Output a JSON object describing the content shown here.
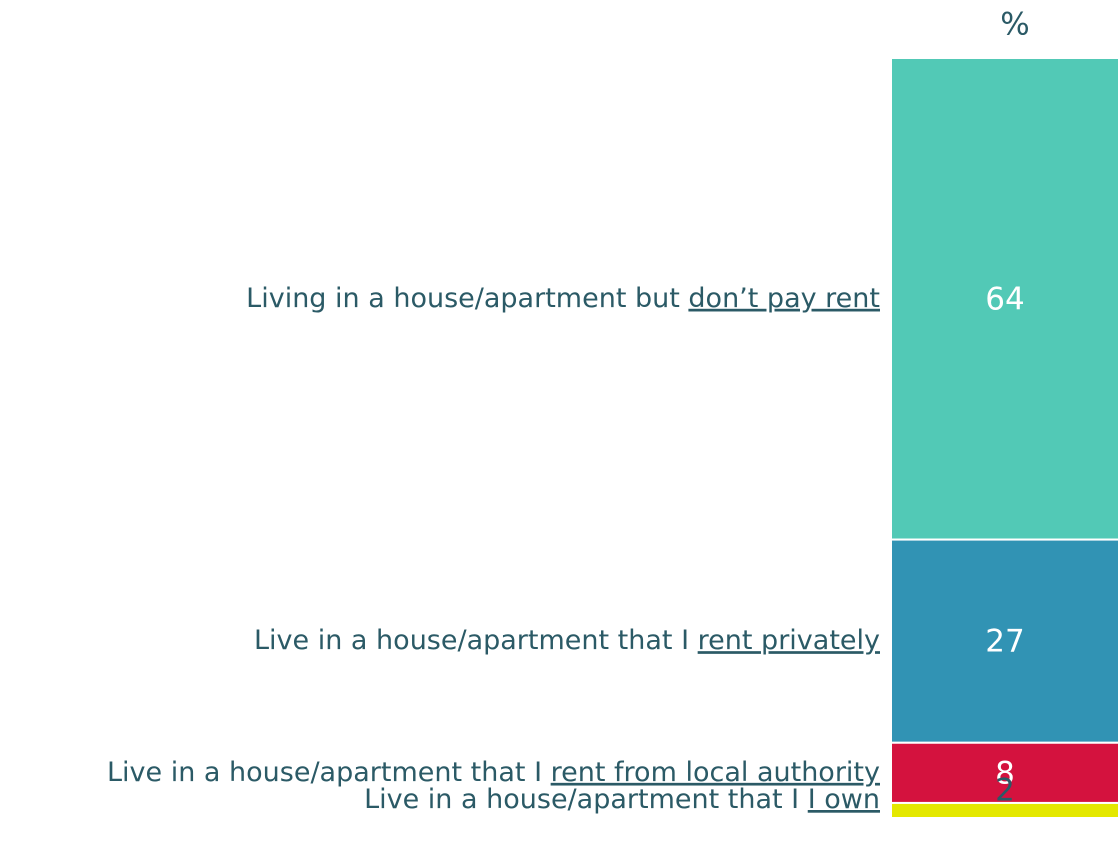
{
  "chart_data": {
    "type": "stacked_bar",
    "unit_label": "%",
    "series": [
      {
        "name": [
          "Living in a house/apartment but ",
          "don’t pay rent"
        ],
        "color": "#52c9b6",
        "values": [
          64
        ]
      },
      {
        "name": [
          "Live in a house/apartment that I ",
          "rent privately"
        ],
        "color": "#3193b4",
        "values": [
          27
        ]
      },
      {
        "name": [
          "Live in a house/apartment that I ",
          "rent from local authority"
        ],
        "color": "#d4123e",
        "values": [
          8
        ]
      },
      {
        "name": [
          "Live in a house/apartment that I ",
          "I own"
        ],
        "color": "#e4e800",
        "values": [
          2
        ]
      }
    ]
  }
}
